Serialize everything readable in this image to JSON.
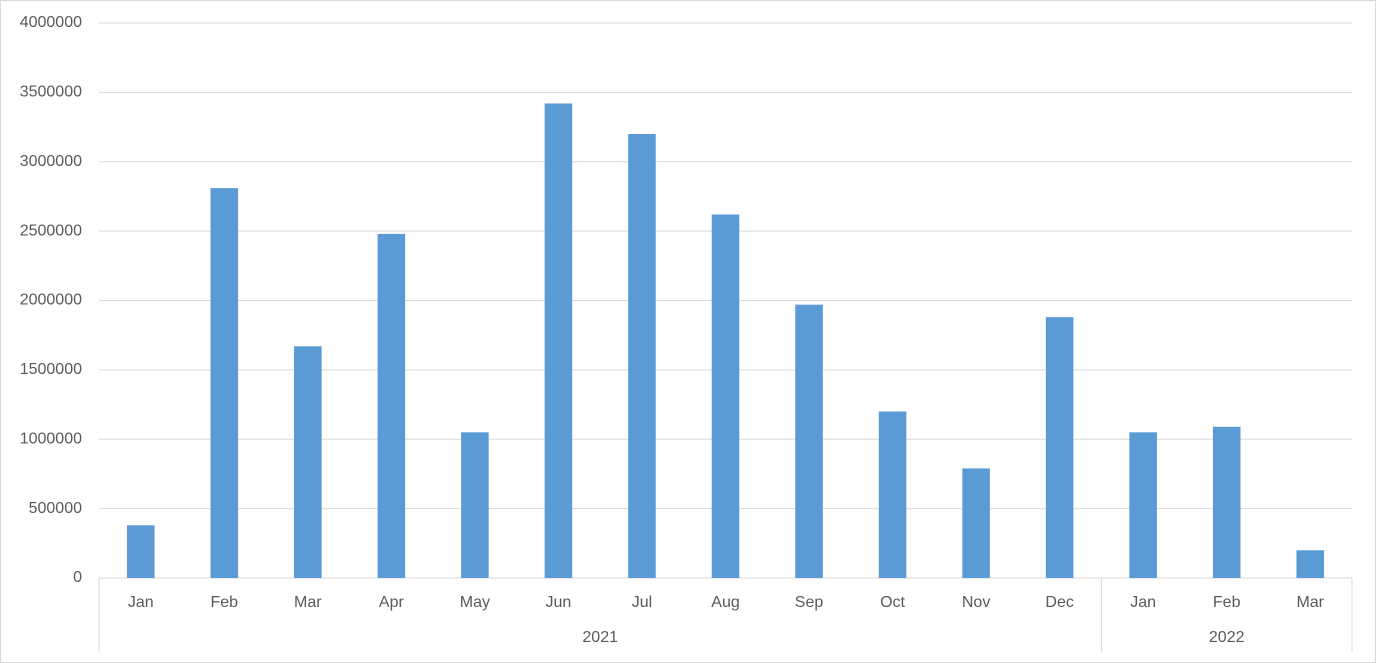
{
  "chart_data": {
    "type": "bar",
    "category_groups": [
      {
        "label": "2021",
        "categories": [
          "Jan",
          "Feb",
          "Mar",
          "Apr",
          "May",
          "Jun",
          "Jul",
          "Aug",
          "Sep",
          "Oct",
          "Nov",
          "Dec"
        ]
      },
      {
        "label": "2022",
        "categories": [
          "Jan",
          "Feb",
          "Mar"
        ]
      }
    ],
    "values": [
      380000,
      2810000,
      1670000,
      2480000,
      1050000,
      3420000,
      3200000,
      2620000,
      1970000,
      1200000,
      790000,
      1880000,
      1050000,
      1090000,
      200000
    ],
    "color": "#5b9bd5",
    "ylim": [
      0,
      4000000
    ],
    "yticks": [
      0,
      500000,
      1000000,
      1500000,
      2000000,
      2500000,
      3000000,
      3500000,
      4000000
    ],
    "grid": true
  }
}
